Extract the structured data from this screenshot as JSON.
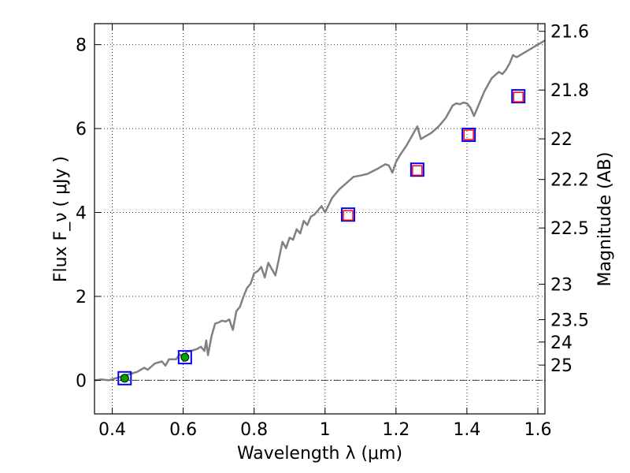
{
  "chart_data": {
    "type": "line",
    "xlabel": "Wavelength  λ (μm)",
    "ylabel": "Flux  F_ν  ( μJy )",
    "ylabel_right": "Magnitude (AB)",
    "xlim": [
      0.35,
      1.62
    ],
    "ylim": [
      -0.8,
      8.5
    ],
    "grid": true,
    "x_ticks": [
      0.4,
      0.6,
      0.8,
      1.0,
      1.2,
      1.4,
      1.6
    ],
    "x_tick_labels": [
      "0.4",
      "0.6",
      "0.8",
      "1",
      "1.2",
      "1.4",
      "1.6"
    ],
    "y_ticks": [
      0,
      2,
      4,
      6,
      8
    ],
    "y_tick_labels": [
      "0",
      "2",
      "4",
      "6",
      "8"
    ],
    "mag_ticks": [
      21.6,
      21.8,
      22,
      22.2,
      22.5,
      23,
      23.5,
      24,
      25
    ],
    "mag_tick_labels": [
      "21.6",
      "21.8",
      "22",
      "22.2",
      "22.5",
      "23",
      "23.5",
      "24",
      "25"
    ],
    "zero_line_y": 0,
    "series": [
      {
        "kind": "model-spectrum",
        "color": "#808080",
        "x": [
          0.35,
          0.37,
          0.39,
          0.41,
          0.43,
          0.45,
          0.47,
          0.49,
          0.5,
          0.52,
          0.54,
          0.55,
          0.56,
          0.58,
          0.59,
          0.6,
          0.61,
          0.62,
          0.63,
          0.64,
          0.65,
          0.66,
          0.665,
          0.67,
          0.68,
          0.69,
          0.7,
          0.71,
          0.72,
          0.73,
          0.74,
          0.75,
          0.76,
          0.77,
          0.78,
          0.79,
          0.8,
          0.81,
          0.82,
          0.83,
          0.84,
          0.85,
          0.86,
          0.87,
          0.88,
          0.89,
          0.9,
          0.91,
          0.92,
          0.93,
          0.94,
          0.95,
          0.96,
          0.97,
          0.98,
          0.99,
          1.0,
          1.02,
          1.04,
          1.06,
          1.08,
          1.1,
          1.12,
          1.15,
          1.17,
          1.18,
          1.19,
          1.2,
          1.21,
          1.23,
          1.25,
          1.26,
          1.27,
          1.28,
          1.3,
          1.32,
          1.34,
          1.36,
          1.37,
          1.38,
          1.39,
          1.4,
          1.41,
          1.42,
          1.43,
          1.45,
          1.47,
          1.49,
          1.5,
          1.51,
          1.52,
          1.53,
          1.54,
          1.56,
          1.58,
          1.6,
          1.62
        ],
        "y": [
          0.0,
          0.02,
          0.0,
          0.05,
          0.1,
          0.15,
          0.2,
          0.3,
          0.25,
          0.4,
          0.45,
          0.35,
          0.5,
          0.5,
          0.62,
          0.55,
          0.68,
          0.7,
          0.72,
          0.75,
          0.8,
          0.7,
          0.95,
          0.6,
          1.05,
          1.35,
          1.38,
          1.42,
          1.4,
          1.45,
          1.2,
          1.65,
          1.75,
          2.0,
          2.2,
          2.3,
          2.55,
          2.6,
          2.7,
          2.45,
          2.8,
          2.65,
          2.5,
          2.9,
          3.3,
          3.15,
          3.4,
          3.35,
          3.6,
          3.5,
          3.8,
          3.7,
          3.9,
          3.95,
          4.05,
          4.15,
          4.0,
          4.35,
          4.55,
          4.7,
          4.85,
          4.88,
          4.92,
          5.05,
          5.15,
          5.12,
          4.95,
          5.2,
          5.35,
          5.6,
          5.9,
          6.05,
          5.75,
          5.8,
          5.9,
          6.05,
          6.25,
          6.55,
          6.6,
          6.58,
          6.62,
          6.6,
          6.5,
          6.3,
          6.5,
          6.9,
          7.2,
          7.35,
          7.3,
          7.4,
          7.55,
          7.75,
          7.7,
          7.8,
          7.9,
          8.0,
          8.1
        ]
      },
      {
        "kind": "photometry-blue-squares",
        "color": "#0000ff",
        "x": [
          0.435,
          0.605,
          1.065,
          1.26,
          1.405,
          1.545
        ],
        "y": [
          0.05,
          0.55,
          3.95,
          5.02,
          5.85,
          6.77
        ]
      },
      {
        "kind": "photometry-red-squares",
        "color": "#ff0000",
        "x": [
          1.065,
          1.26,
          1.405,
          1.545
        ],
        "y": [
          3.93,
          5.0,
          5.85,
          6.75
        ]
      },
      {
        "kind": "photometry-green-points",
        "color": "#00a000",
        "x": [
          0.435,
          0.605
        ],
        "y": [
          0.05,
          0.55
        ]
      }
    ]
  }
}
